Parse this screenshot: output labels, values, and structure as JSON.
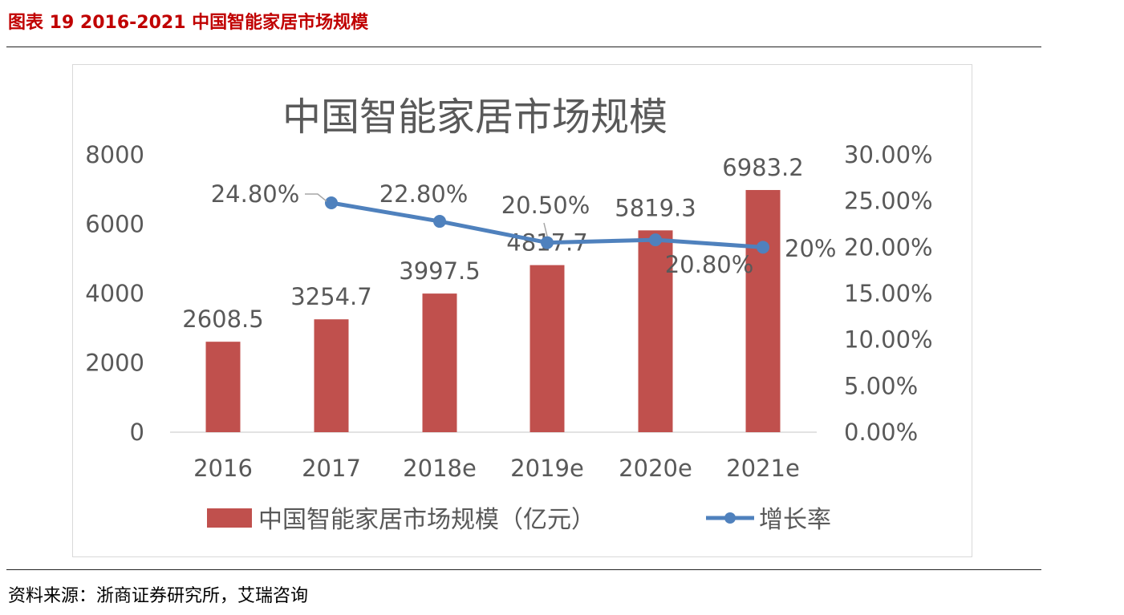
{
  "figure": {
    "caption": "图表 19 2016-2021 中国智能家居市场规模",
    "source": "资料来源：浙商证券研究所，艾瑞咨询"
  },
  "colors": {
    "bar": "#c0504d",
    "line": "#4f81bd",
    "caption": "#c00000",
    "text": "#595959",
    "grid": "#d9d9d9"
  },
  "chart_data": {
    "type": "bar",
    "title": "中国智能家居市场规模",
    "categories": [
      "2016",
      "2017",
      "2018e",
      "2019e",
      "2020e",
      "2021e"
    ],
    "series": [
      {
        "name": "中国智能家居市场规模（亿元）",
        "type": "bar",
        "axis": "left",
        "values": [
          2608.5,
          3254.7,
          3997.5,
          4817.7,
          5819.3,
          6983.2
        ],
        "labels": [
          "2608.5",
          "3254.7",
          "3997.5",
          "4817.7",
          "5819.3",
          "6983.2"
        ]
      },
      {
        "name": "增长率",
        "type": "line",
        "axis": "right",
        "x": [
          "2017",
          "2018e",
          "2019e",
          "2020e",
          "2021e"
        ],
        "values": [
          24.8,
          22.8,
          20.5,
          20.8,
          20.0
        ],
        "labels": [
          "24.80%",
          "22.80%",
          "20.50%",
          "20.80%",
          "20%"
        ]
      }
    ],
    "y_left": {
      "min": 0,
      "max": 8000,
      "ticks": [
        "0",
        "2000",
        "4000",
        "6000",
        "8000"
      ]
    },
    "y_right": {
      "min": 0,
      "max": 30,
      "ticks": [
        "0.00%",
        "5.00%",
        "10.00%",
        "15.00%",
        "20.00%",
        "25.00%",
        "30.00%"
      ]
    },
    "grid": false,
    "legend": "bottom"
  }
}
